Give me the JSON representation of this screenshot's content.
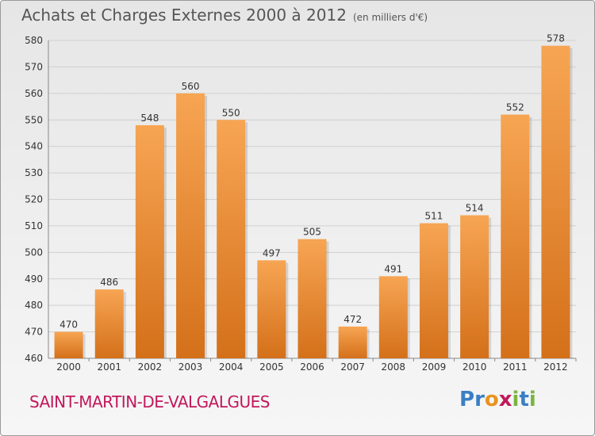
{
  "header": {
    "title": "Achats et Charges Externes 2000 à 2012",
    "unit": "(en milliers d'€)"
  },
  "footer": {
    "commune": "SAINT-MARTIN-DE-VALGALGUES",
    "logo_letters": [
      "P",
      "r",
      "o",
      "x",
      "i",
      "t",
      "i"
    ],
    "logo_colors": [
      "#3a7fc4",
      "#3a7fc4",
      "#e8931e",
      "#c2185b",
      "#7cb342",
      "#3a7fc4",
      "#7cb342"
    ]
  },
  "colors": {
    "bar_light": "#f7a553",
    "bar_dark": "#d4701a",
    "grid": "#d0d0d0",
    "commune": "#c2185b"
  },
  "chart_data": {
    "type": "bar",
    "title": "Achats et Charges Externes 2000 à 2012",
    "subtitle": "(en milliers d'€)",
    "categories": [
      "2000",
      "2001",
      "2002",
      "2003",
      "2004",
      "2005",
      "2006",
      "2007",
      "2008",
      "2009",
      "2010",
      "2011",
      "2012"
    ],
    "values": [
      470,
      486,
      548,
      560,
      550,
      497,
      505,
      472,
      491,
      511,
      514,
      552,
      578
    ],
    "ylim": [
      460,
      580
    ],
    "yticks": [
      460,
      470,
      480,
      490,
      500,
      510,
      520,
      530,
      540,
      550,
      560,
      570,
      580
    ],
    "grid": true,
    "data_labels": true
  }
}
